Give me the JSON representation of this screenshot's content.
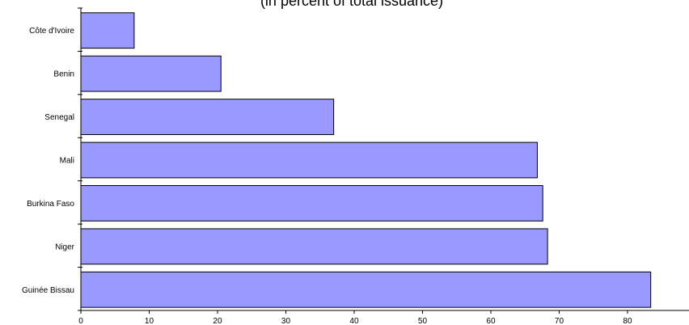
{
  "chart_data": {
    "type": "bar",
    "orientation": "horizontal",
    "subtitle": "(in percent of total issuance)",
    "categories": [
      "Côte d'Ivoire",
      "Benin",
      "Senegal",
      "Mali",
      "Burkina Faso",
      "Niger",
      "Guinée Bissau"
    ],
    "values": [
      7.8,
      20.5,
      37.0,
      66.8,
      67.6,
      68.3,
      83.4
    ],
    "xlim": [
      0,
      90
    ],
    "xticks": [
      0,
      10,
      20,
      30,
      40,
      50,
      60,
      70,
      80,
      90
    ],
    "grid": false,
    "legend": "none",
    "bar_color": "#9999ff",
    "xlabel": "",
    "ylabel": ""
  }
}
